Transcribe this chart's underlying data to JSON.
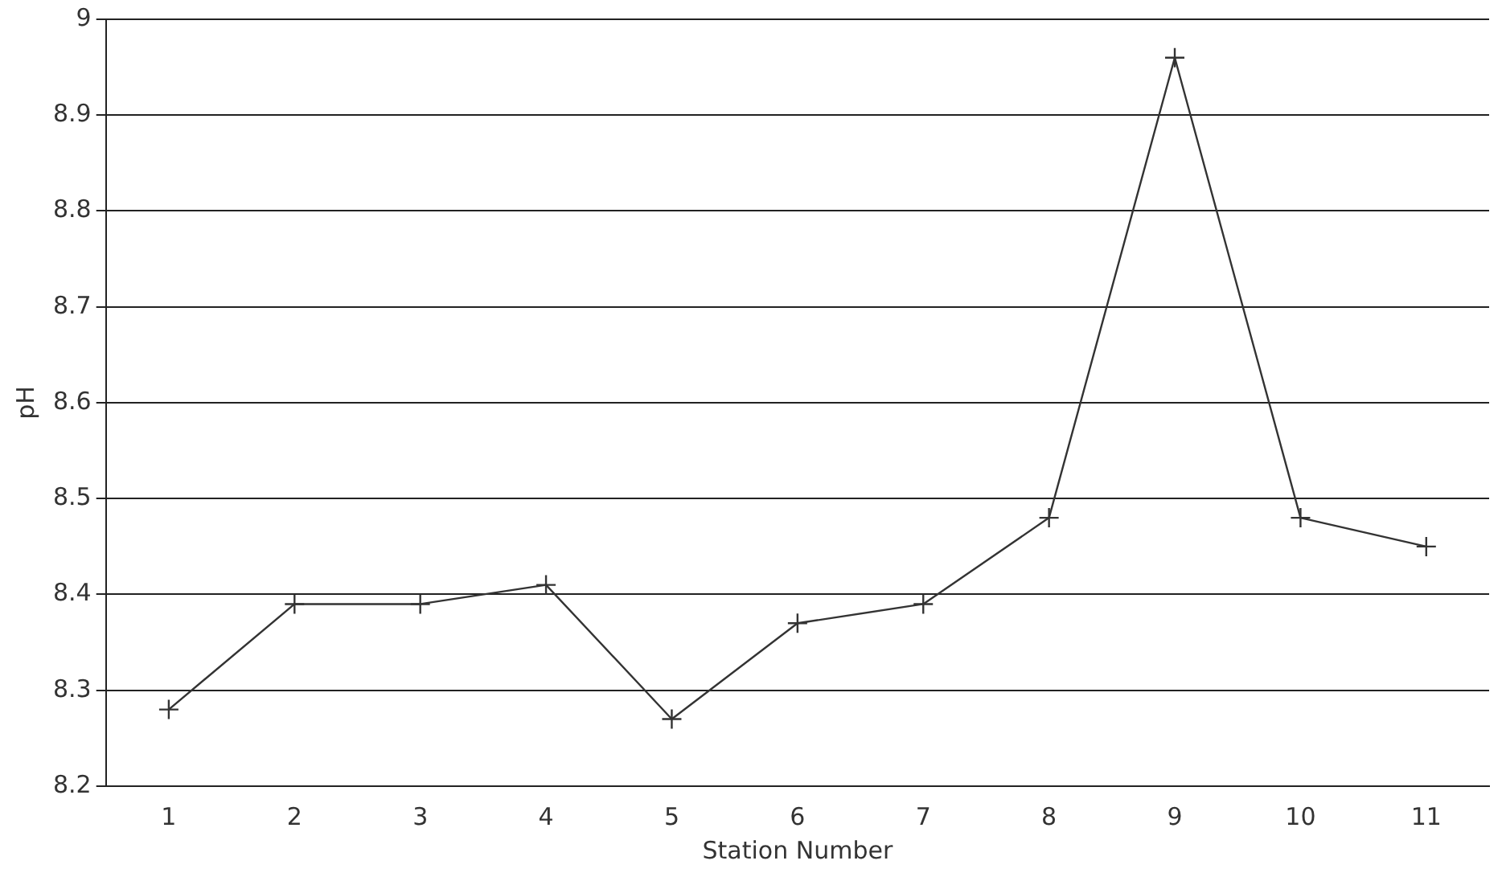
{
  "chart_data": {
    "type": "line",
    "xlabel": "Station Number",
    "ylabel": "pH",
    "categories": [
      "1",
      "2",
      "3",
      "4",
      "5",
      "6",
      "7",
      "8",
      "9",
      "10",
      "11"
    ],
    "series": [
      {
        "color": "#333333",
        "values": [
          8.28,
          8.39,
          8.39,
          8.41,
          8.27,
          8.37,
          8.39,
          8.48,
          8.96,
          8.48,
          8.45
        ]
      }
    ],
    "ylim": [
      8.2,
      9
    ],
    "yticks": [
      8.2,
      8.3,
      8.4,
      8.5,
      8.6,
      8.7,
      8.8,
      8.9,
      9
    ],
    "grid": "y",
    "legend": false,
    "marker": "cross",
    "line_style": "solid"
  }
}
